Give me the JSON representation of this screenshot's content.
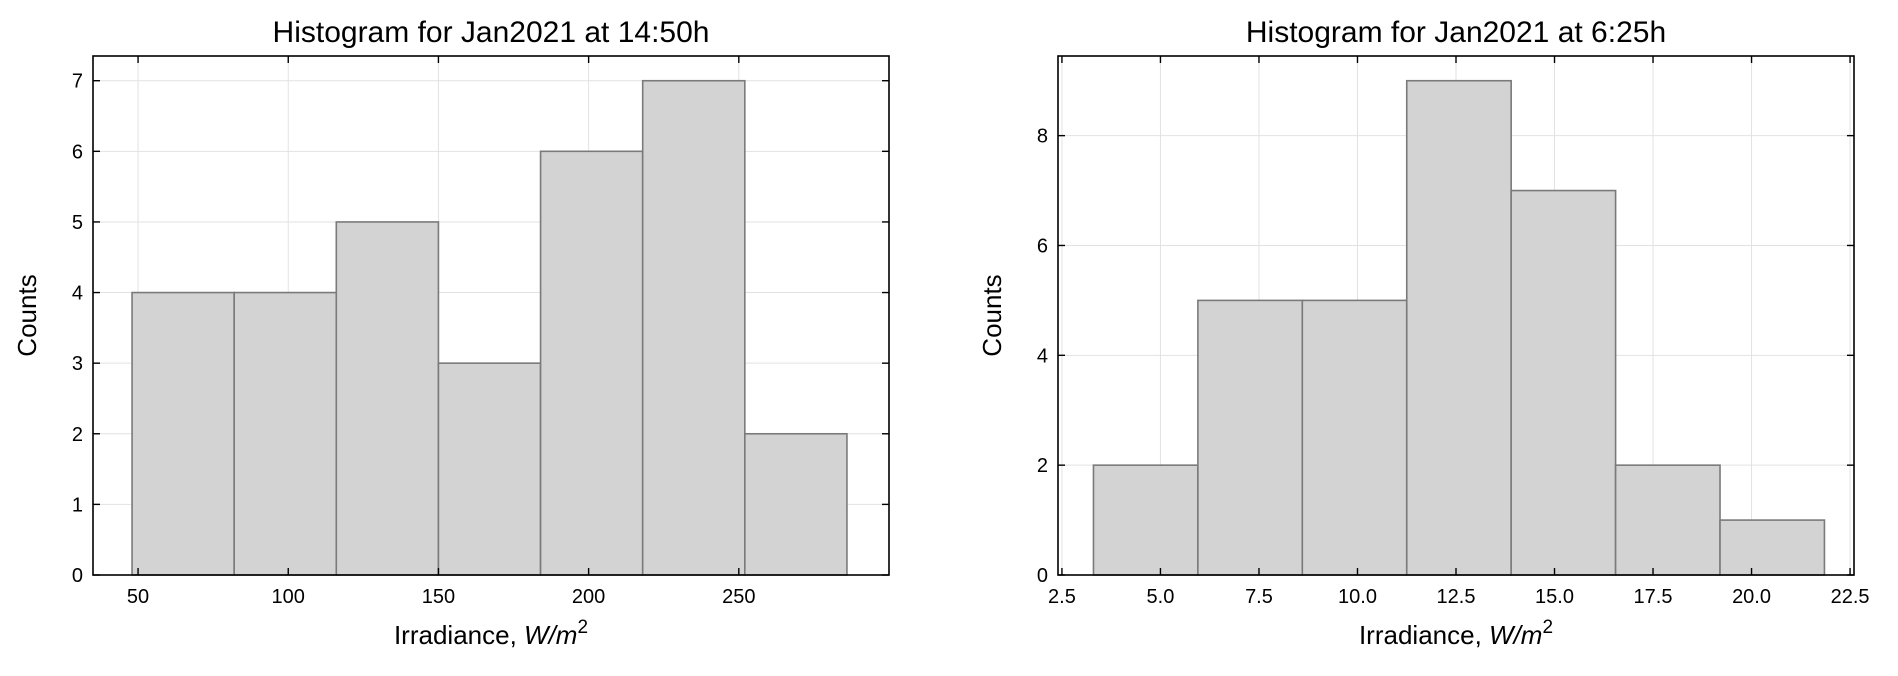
{
  "chart_data": [
    {
      "type": "bar",
      "title": "Histogram for Jan2021 at 14:50h",
      "xlabel": "Irradiance, ",
      "xlabel_unit": "W/m",
      "xlabel_exp": "2",
      "ylabel": "Counts",
      "xlim": [
        35,
        300
      ],
      "ylim": [
        0,
        7.35
      ],
      "xticks": [
        50,
        100,
        150,
        200,
        250
      ],
      "xtick_labels": [
        "50",
        "100",
        "150",
        "200",
        "250"
      ],
      "yticks": [
        0,
        1,
        2,
        3,
        4,
        5,
        6,
        7
      ],
      "ytick_labels": [
        "0",
        "1",
        "2",
        "3",
        "4",
        "5",
        "6",
        "7"
      ],
      "bin_edges": [
        48,
        82,
        116,
        150,
        184,
        218,
        252,
        286
      ],
      "values": [
        4,
        4,
        5,
        3,
        6,
        7,
        2
      ],
      "grid": true
    },
    {
      "type": "bar",
      "title": "Histogram for Jan2021 at 6:25h",
      "xlabel": "Irradiance, ",
      "xlabel_unit": "W/m",
      "xlabel_exp": "2",
      "ylabel": "Counts",
      "xlim": [
        2.4,
        22.6
      ],
      "ylim": [
        0,
        9.45
      ],
      "xticks": [
        2.5,
        5.0,
        7.5,
        10.0,
        12.5,
        15.0,
        17.5,
        20.0,
        22.5
      ],
      "xtick_labels": [
        "2.5",
        "5.0",
        "7.5",
        "10.0",
        "12.5",
        "15.0",
        "17.5",
        "20.0",
        "22.5"
      ],
      "yticks": [
        0,
        2,
        4,
        6,
        8
      ],
      "ytick_labels": [
        "0",
        "2",
        "4",
        "6",
        "8"
      ],
      "bin_edges": [
        3.3,
        5.95,
        8.6,
        11.25,
        13.9,
        16.55,
        19.2,
        21.85
      ],
      "values": [
        2,
        5,
        5,
        9,
        7,
        2,
        1
      ],
      "grid": true
    }
  ]
}
